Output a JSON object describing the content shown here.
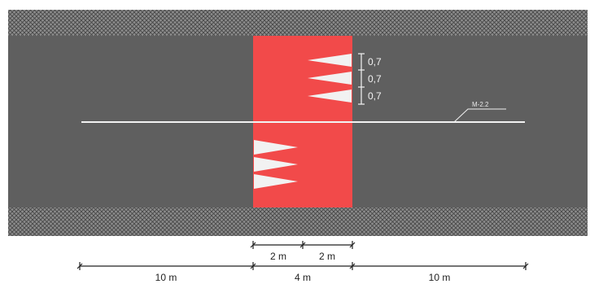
{
  "road": {
    "curb_color": "#8a8a8a",
    "asphalt_color": "#5f5f5f",
    "crossing_color": "#f24a4a",
    "marking_color": "#f2f2f2"
  },
  "markings": {
    "spacing_label_1": "0,7",
    "spacing_label_2": "0,7",
    "spacing_label_3": "0,7",
    "line_label": "M-2.2"
  },
  "dimensions": {
    "upper_left": "2 m",
    "upper_right": "2 m",
    "lower_left": "10 m",
    "lower_middle": "4 m",
    "lower_right": "10 m"
  }
}
